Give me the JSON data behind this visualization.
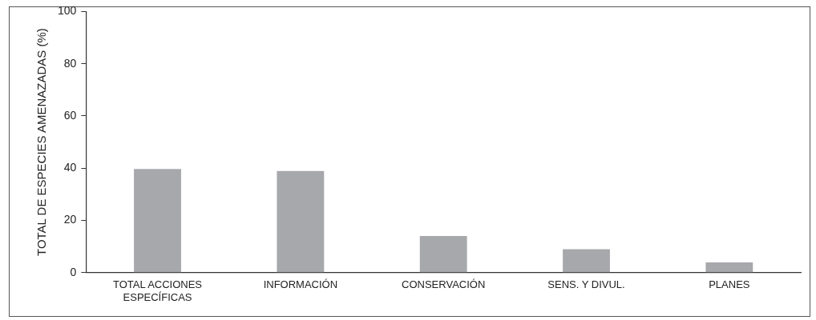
{
  "chart_data": {
    "type": "bar",
    "ylabel": "TOTAL DE ESPECIES AMENAZADAS (%)",
    "categories": [
      "TOTAL ACCIONES ESPECÍFICAS",
      "INFORMACIÓN",
      "CONSERVACIÓN",
      "SENS. Y DIVUL.",
      "PLANES"
    ],
    "values": [
      39.7,
      38.9,
      14,
      9,
      3.9
    ],
    "color": "#a7a8ab",
    "ylim": [
      0,
      100
    ],
    "yticks": [
      0,
      20,
      40,
      60,
      80,
      100
    ],
    "grid": false,
    "legend": false
  }
}
